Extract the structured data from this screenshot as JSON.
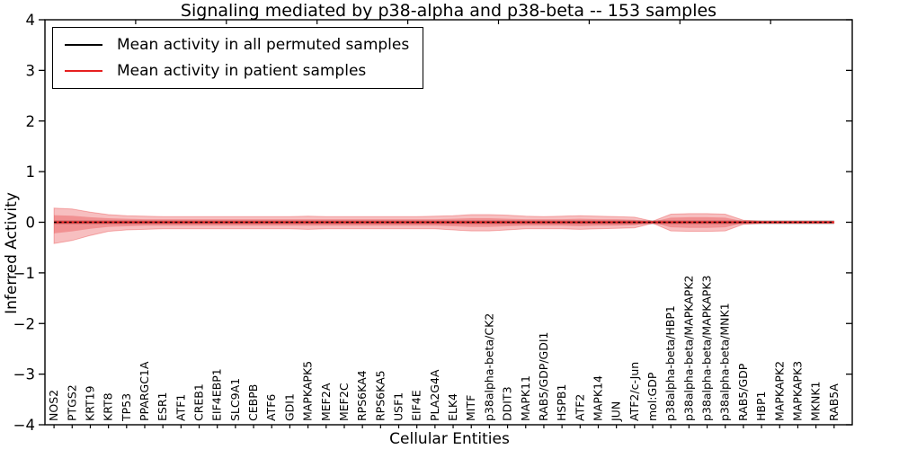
{
  "chart_data": {
    "type": "line",
    "title": "Signaling mediated by p38-alpha and p38-beta -- 153 samples",
    "xlabel": "Cellular Entities",
    "ylabel": "Inferred Activity",
    "ylim": [
      -4,
      4
    ],
    "xlim": [
      0,
      44.5
    ],
    "yticks": [
      4,
      3,
      2,
      1,
      0,
      -1,
      -2,
      -3,
      -4
    ],
    "ytick_labels": [
      "4",
      "3",
      "2",
      "1",
      "0",
      "−1",
      "−2",
      "−3",
      "−4"
    ],
    "top_tick_step": 5,
    "grid": false,
    "legend_position": "upper left",
    "legend": [
      {
        "label": "Mean activity in all permuted samples",
        "color": "#000000",
        "style": "solid"
      },
      {
        "label": "Mean activity in patient samples",
        "color": "#e62020",
        "style": "solid"
      }
    ],
    "categories": [
      "NOS2",
      "PTGS2",
      "KRT19",
      "KRT8",
      "TP53",
      "PPARGC1A",
      "ESR1",
      "ATF1",
      "CREB1",
      "EIF4EBP1",
      "SLC9A1",
      "CEBPB",
      "ATF6",
      "GDI1",
      "MAPKAPK5",
      "MEF2A",
      "MEF2C",
      "RPS6KA4",
      "RPS6KA5",
      "USF1",
      "EIF4E",
      "PLA2G4A",
      "ELK4",
      "MITF",
      "p38alpha-beta/CK2",
      "DDIT3",
      "MAPK11",
      "RAB5/GDP/GDI1",
      "HSPB1",
      "ATF2",
      "MAPK14",
      "JUN",
      "ATF2/c-Jun",
      "mol:GDP",
      "p38alpha-beta/HBP1",
      "p38alpha-beta/MAPKAPK2",
      "p38alpha-beta/MAPKAPK3",
      "p38alpha-beta/MNK1",
      "RAB5/GDP",
      "HBP1",
      "MAPKAPK2",
      "MAPKAPK3",
      "MKNK1",
      "RAB5A"
    ],
    "series": [
      {
        "name": "Mean activity in all permuted samples",
        "color": "#000000",
        "style": "dashed",
        "values": [
          0,
          0,
          0,
          0,
          0,
          0,
          0,
          0,
          0,
          0,
          0,
          0,
          0,
          0,
          0,
          0,
          0,
          0,
          0,
          0,
          0,
          0,
          0,
          0,
          0,
          0,
          0,
          0,
          0,
          0,
          0,
          0,
          0,
          0,
          0,
          0,
          0,
          0,
          0,
          0,
          0,
          0,
          0,
          0
        ]
      },
      {
        "name": "Mean activity in patient samples",
        "color": "#e62020",
        "style": "solid",
        "values": [
          0,
          0,
          0,
          0,
          0,
          0,
          0,
          0,
          0,
          0,
          0,
          0,
          0,
          0,
          0,
          0,
          0,
          0,
          0,
          0,
          0,
          0,
          0,
          0,
          0,
          0,
          0,
          0,
          0,
          0,
          0,
          0,
          0,
          0,
          0,
          0,
          0,
          0,
          0,
          0,
          0,
          0,
          0,
          0
        ]
      }
    ],
    "bands": {
      "color": "#e41a1c",
      "opacity": 0.28,
      "gray_band_halfwidth": 0.045,
      "gray_band_color": "#787878",
      "outer_upper": [
        0.28,
        0.26,
        0.2,
        0.15,
        0.13,
        0.12,
        0.11,
        0.11,
        0.11,
        0.11,
        0.11,
        0.11,
        0.11,
        0.11,
        0.12,
        0.11,
        0.11,
        0.11,
        0.11,
        0.11,
        0.11,
        0.12,
        0.13,
        0.15,
        0.15,
        0.14,
        0.12,
        0.11,
        0.12,
        0.13,
        0.12,
        0.11,
        0.1,
        0.02,
        0.16,
        0.17,
        0.17,
        0.16,
        0.04,
        0.02,
        0.02,
        0.02,
        0.02,
        0.02
      ],
      "outer_lower": [
        0.42,
        0.36,
        0.26,
        0.18,
        0.15,
        0.14,
        0.13,
        0.13,
        0.13,
        0.13,
        0.13,
        0.13,
        0.13,
        0.13,
        0.14,
        0.13,
        0.13,
        0.13,
        0.13,
        0.13,
        0.13,
        0.13,
        0.15,
        0.17,
        0.17,
        0.15,
        0.13,
        0.13,
        0.13,
        0.14,
        0.13,
        0.12,
        0.11,
        0.02,
        0.17,
        0.18,
        0.18,
        0.17,
        0.04,
        0.02,
        0.02,
        0.02,
        0.02,
        0.02
      ],
      "inner_upper": [
        0.14,
        0.13,
        0.1,
        0.08,
        0.07,
        0.06,
        0.06,
        0.06,
        0.06,
        0.06,
        0.06,
        0.06,
        0.06,
        0.06,
        0.06,
        0.06,
        0.06,
        0.06,
        0.06,
        0.06,
        0.06,
        0.06,
        0.07,
        0.08,
        0.08,
        0.07,
        0.06,
        0.06,
        0.06,
        0.07,
        0.06,
        0.06,
        0.05,
        0.01,
        0.09,
        0.1,
        0.1,
        0.09,
        0.02,
        0.01,
        0.01,
        0.01,
        0.01,
        0.01
      ],
      "inner_lower": [
        0.22,
        0.18,
        0.13,
        0.09,
        0.08,
        0.07,
        0.07,
        0.07,
        0.07,
        0.07,
        0.07,
        0.07,
        0.07,
        0.07,
        0.07,
        0.07,
        0.07,
        0.07,
        0.07,
        0.07,
        0.07,
        0.07,
        0.08,
        0.09,
        0.09,
        0.08,
        0.07,
        0.07,
        0.07,
        0.08,
        0.07,
        0.07,
        0.06,
        0.01,
        0.1,
        0.11,
        0.11,
        0.1,
        0.02,
        0.01,
        0.01,
        0.01,
        0.01,
        0.01
      ]
    }
  }
}
